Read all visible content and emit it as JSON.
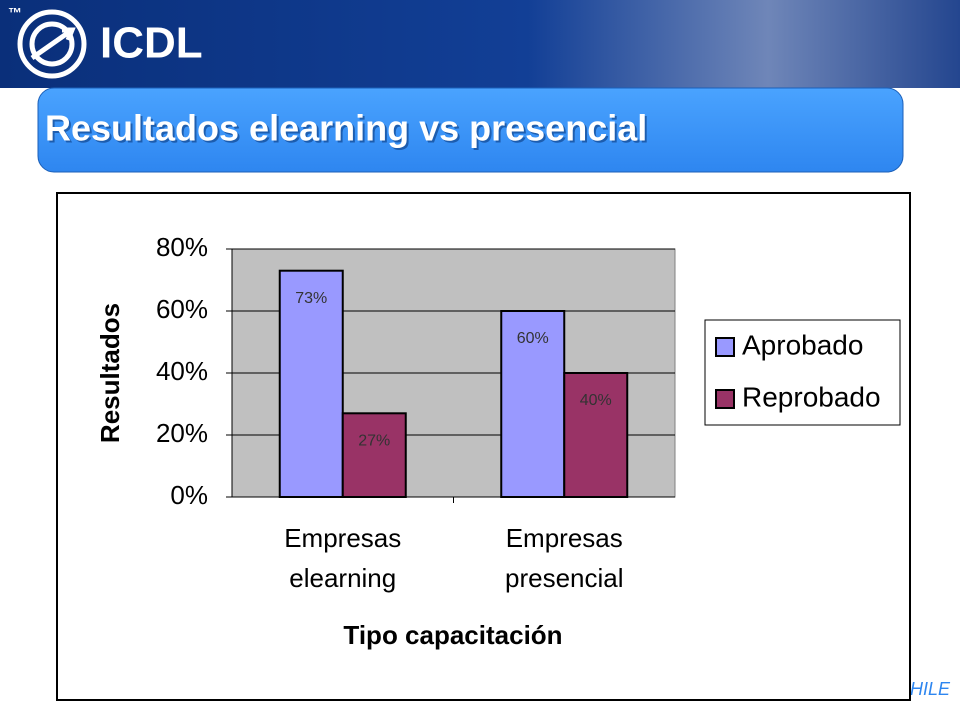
{
  "header": {
    "tm": "™",
    "logo": "ICDL"
  },
  "slide_title": "Resultados elearning vs presencial",
  "footer": "HILE",
  "chart_data": {
    "type": "bar",
    "categories": [
      "Empresas elearning",
      "Empresas presencial"
    ],
    "series": [
      {
        "name": "Aprobado",
        "color": "#9999ff",
        "values": [
          73,
          60
        ],
        "value_labels": [
          "73%",
          "60%"
        ]
      },
      {
        "name": "Reprobado",
        "color": "#993366",
        "values": [
          27,
          40
        ],
        "value_labels": [
          "27%",
          "40%"
        ]
      }
    ],
    "ylim": [
      0,
      80
    ],
    "yticks": [
      {
        "value": 0,
        "label": "0%"
      },
      {
        "value": 20,
        "label": "20%"
      },
      {
        "value": 40,
        "label": "40%"
      },
      {
        "value": 60,
        "label": "60%"
      },
      {
        "value": 80,
        "label": "80%"
      }
    ],
    "y_label": "Resultados",
    "x_label": "Tipo capacitación",
    "grid": true,
    "plot_background": "#c0c0c0",
    "legend_position": "right"
  }
}
